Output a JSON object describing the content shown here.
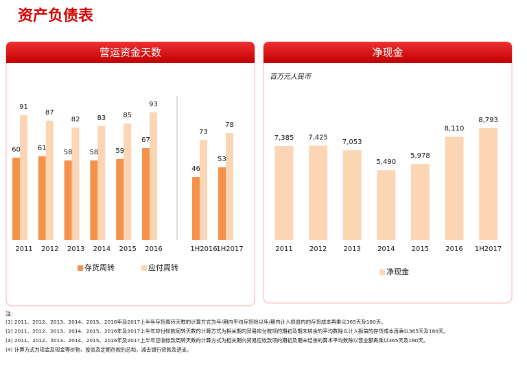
{
  "title": "资产负债表",
  "chart_data": [
    {
      "type": "bar",
      "title": "营运资金天数",
      "categories": [
        "2011",
        "2012",
        "2013",
        "2014",
        "2015",
        "2016",
        "1H2016",
        "1H2017"
      ],
      "series": [
        {
          "name": "存货周转",
          "color": "#f4914a",
          "values": [
            60,
            61,
            58,
            58,
            59,
            67,
            46,
            53
          ]
        },
        {
          "name": "应付周转",
          "color": "#fcd5b4",
          "values": [
            91,
            87,
            82,
            83,
            85,
            93,
            73,
            78
          ]
        }
      ],
      "ylim": [
        0,
        100
      ]
    },
    {
      "type": "bar",
      "title": "净现金",
      "subtitle": "百万元人民币",
      "categories": [
        "2011",
        "2012",
        "2013",
        "2014",
        "2015",
        "2016",
        "1H2017"
      ],
      "series": [
        {
          "name": "净现金",
          "color": "#fcd5b4",
          "values": [
            7385,
            7425,
            7053,
            5490,
            5978,
            8110,
            8793
          ],
          "value_labels": [
            "7,385",
            "7,425",
            "7,053",
            "5,490",
            "5,978",
            "8,110",
            "8,793"
          ]
        }
      ],
      "ylim": [
        0,
        10000
      ]
    }
  ],
  "notes": {
    "heading": "注:",
    "items": [
      "(1) 2011、2012、2013、2014、2015、2016年及2017上半年存货周转天数的计算方式为年/期内平均存货除以年/期内计入损益内的存货成本再乘以365天及180天。",
      "(2) 2011、2012、2013、2014、2015、2016年及2017上半年应付帐款周转天数的计算方式为相关期内贸易应付款项的期初及期末结余的平均数除以计入损益的存货成本再乘以365天及180天。",
      "(3) 2011、2012、2013、2014、2015、2016年及2017上半年应收帐款周转天数的计算方式为相关期内贸易应收款项的期初及期末结余的算术平均数除以营业额再乘以365天及180天。",
      "(4) 计算方式为现金及现金等价物、投资及定期存款的总和，减去银行贷款及透支。"
    ]
  }
}
